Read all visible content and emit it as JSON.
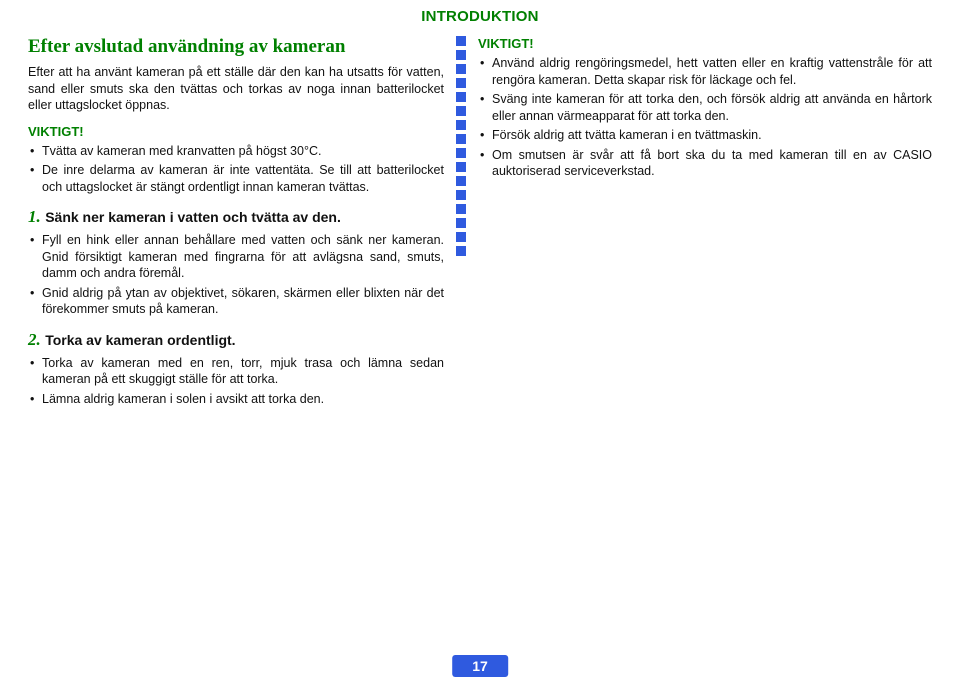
{
  "page": {
    "header": "INTRODUKTION",
    "number": "17"
  },
  "left": {
    "title": "Efter avslutad användning av kameran",
    "intro": "Efter att ha använt kameran på ett ställe där den kan ha utsatts för vatten, sand eller smuts ska den tvättas och torkas av noga innan batterilocket eller uttagslocket öppnas.",
    "viktigt_label": "VIKTIGT!",
    "viktigt_items": [
      "Tvätta av kameran med kranvatten på högst 30°C.",
      "De inre delarma av kameran är inte vattentäta. Se till att batterilocket och uttagslocket är stängt ordentligt innan kameran tvättas."
    ],
    "step1_num": "1.",
    "step1_title": "Sänk ner kameran i vatten och tvätta av den.",
    "step1_items": [
      "Fyll en hink eller annan behållare med vatten och sänk ner kameran. Gnid försiktigt kameran med fingrarna för att avlägsna sand, smuts, damm och andra föremål.",
      "Gnid aldrig på ytan av objektivet, sökaren, skärmen eller blixten när det förekommer smuts på kameran."
    ],
    "step2_num": "2.",
    "step2_title": "Torka av kameran ordentligt.",
    "step2_items": [
      "Torka av kameran med en ren, torr, mjuk trasa och lämna sedan kameran på ett skuggigt ställe för att torka.",
      "Lämna aldrig kameran i solen i avsikt att torka den."
    ]
  },
  "right": {
    "viktigt_label": "VIKTIGT!",
    "items": [
      "Använd aldrig rengöringsmedel, hett vatten eller en kraftig vattenstråle för att rengöra kameran. Detta skapar risk för läckage och fel.",
      "Sväng inte kameran för att torka den, och försök aldrig att använda en hårtork eller annan värmeapparat för att torka den.",
      "Försök aldrig att tvätta kameran i en tvättmaskin.",
      "Om smutsen är svår att få bort ska du ta med kameran till en av CASIO auktoriserad serviceverkstad."
    ]
  },
  "style": {
    "accent": "#008000",
    "divider_color": "#2f5adf",
    "badge_bg": "#2f5adf",
    "badge_fg": "#ffffff"
  }
}
